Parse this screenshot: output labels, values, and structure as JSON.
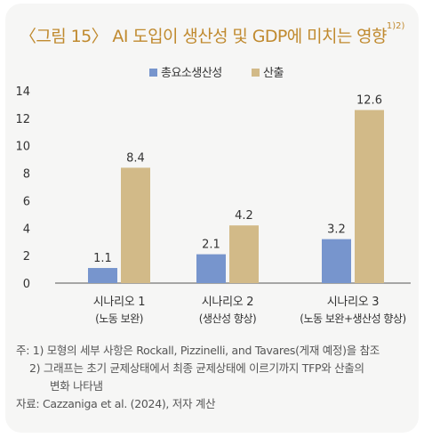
{
  "title": "〈그림 15〉 AI 도입이 생산성 및 GDP에 미치는 영향",
  "title_superscript": "1)2)",
  "notes": {
    "note1": "주: 1) 모형의 세부 사항은 Rockall, Pizzinelli, and Tavares(게재 예정)을 참조",
    "note2a": "2) 그래프는 초기 균제상태에서 최종 균제상태에 이르기까지 TFP와 산출의",
    "note2b": "변화 나타냄",
    "source": "자료: Cazzaniga et al. (2024), 저자 계산"
  },
  "colors": {
    "employment": "#7795cd",
    "output": "#d2ba88",
    "title": "#c08a2f",
    "axis_text": "#333333"
  },
  "chart_data": {
    "type": "bar",
    "categories": [
      "시나리오 1",
      "시나리오 2",
      "시나리오 3"
    ],
    "category_sublabels": [
      "(노동 보완)",
      "(생산성 향상)",
      "(노동 보완+생산성 향상)"
    ],
    "series": [
      {
        "name": "총요소생산성",
        "values": [
          1.1,
          2.1,
          3.2
        ],
        "labels": [
          "1.1",
          "2.1",
          "3.2"
        ]
      },
      {
        "name": "산출",
        "values": [
          8.4,
          4.2,
          12.6
        ],
        "labels": [
          "8.4",
          "4.2",
          "12.6"
        ]
      }
    ],
    "yticks": [
      "0",
      "2",
      "4",
      "6",
      "8",
      "10",
      "12",
      "14"
    ],
    "ylim": [
      0,
      14
    ],
    "legend_position": "top-center",
    "grid": false
  }
}
